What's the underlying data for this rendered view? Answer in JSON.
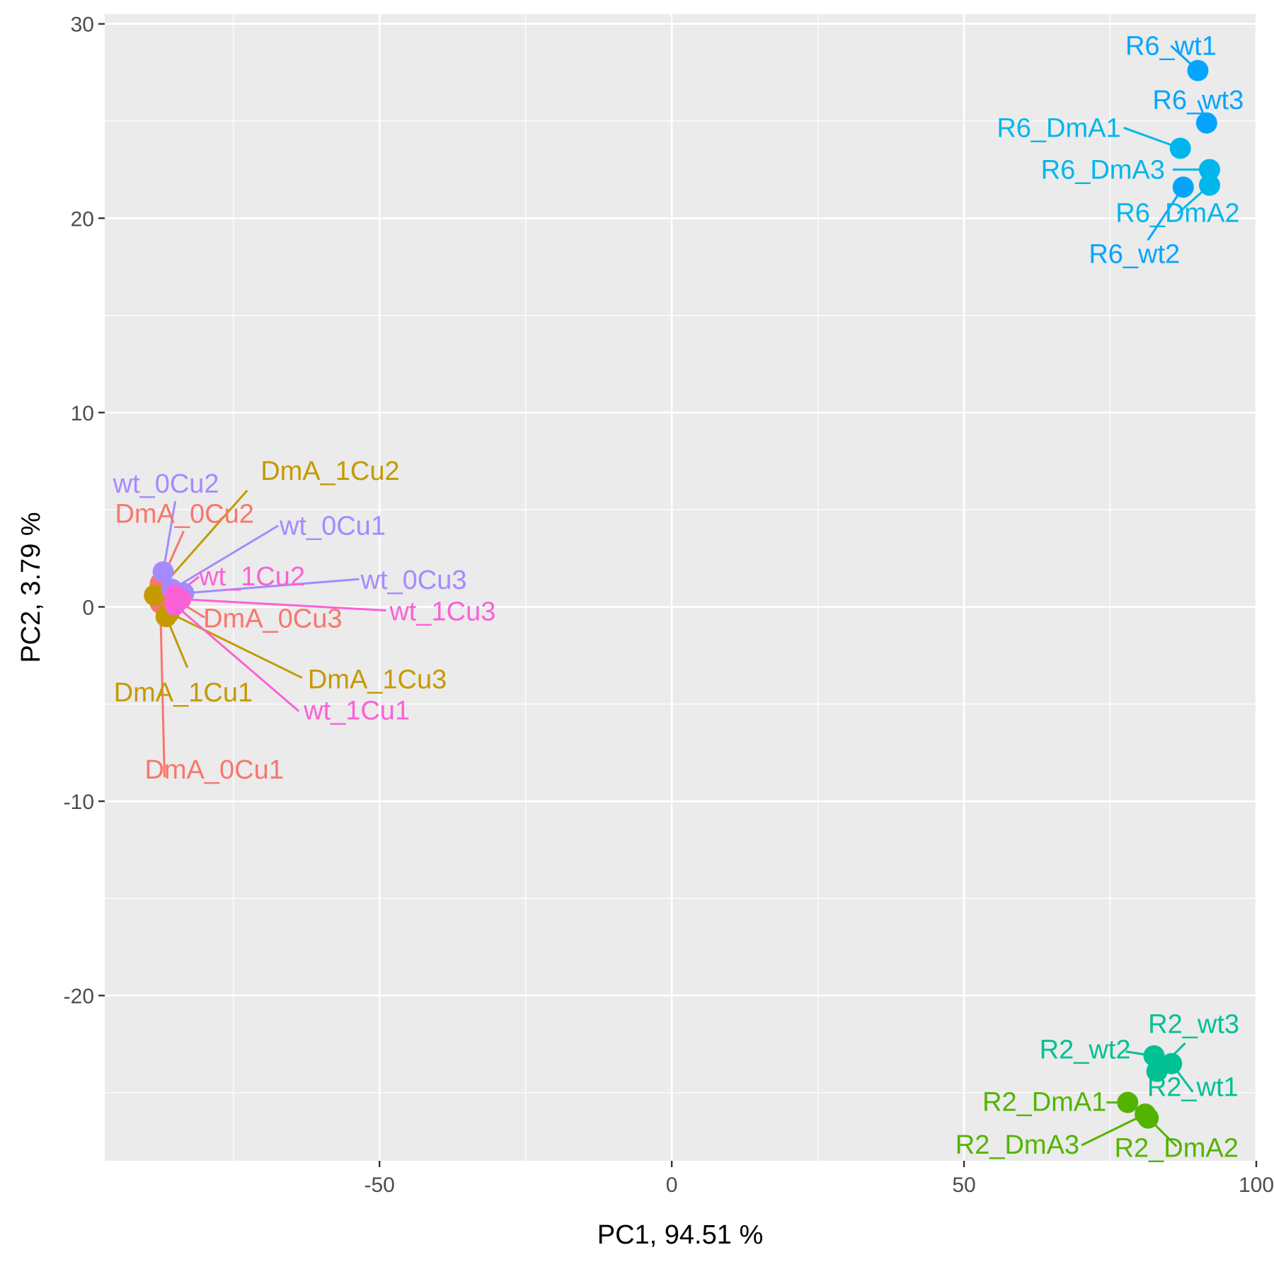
{
  "chart_data": {
    "type": "scatter",
    "title": "",
    "xlabel": "PC1,  94.51 %",
    "ylabel": "PC2,  3.79 %",
    "xlim": [
      -97,
      100
    ],
    "ylim": [
      -28.5,
      30.5
    ],
    "x_ticks": [
      -50,
      0,
      50,
      100
    ],
    "y_ticks": [
      -20,
      -10,
      0,
      10,
      20,
      30
    ],
    "x_tick_labels": [
      "-50",
      "0",
      "50",
      "100"
    ],
    "y_tick_labels": [
      "-20",
      "-10",
      "0",
      "10",
      "20",
      "30"
    ],
    "grid": true,
    "legend": "none",
    "series": [
      {
        "color": "#F8766D",
        "points": [
          {
            "label": "DmA_0Cu1",
            "x": -87.5,
            "y": 0.2
          },
          {
            "label": "DmA_0Cu2",
            "x": -87.5,
            "y": 1.2
          },
          {
            "label": "DmA_0Cu3",
            "x": -85.0,
            "y": 0.4
          }
        ]
      },
      {
        "color": "#C49A00",
        "points": [
          {
            "label": "DmA_1Cu1",
            "x": -86.5,
            "y": -0.5
          },
          {
            "label": "DmA_1Cu2",
            "x": -88.5,
            "y": 0.6
          },
          {
            "label": "DmA_1Cu3",
            "x": -86.0,
            "y": -0.3
          }
        ]
      },
      {
        "color": "#53B400",
        "points": [
          {
            "label": "R2_DmA1",
            "x": 78.0,
            "y": -25.5
          },
          {
            "label": "R2_DmA2",
            "x": 81.5,
            "y": -26.3
          },
          {
            "label": "R2_DmA3",
            "x": 81.0,
            "y": -26.1
          }
        ]
      },
      {
        "color": "#00C094",
        "points": [
          {
            "label": "R2_wt1",
            "x": 85.5,
            "y": -23.5
          },
          {
            "label": "R2_wt2",
            "x": 82.5,
            "y": -23.1
          },
          {
            "label": "R2_wt3",
            "x": 83.0,
            "y": -23.9
          }
        ]
      },
      {
        "color": "#00B6EB",
        "points": [
          {
            "label": "R6_DmA1",
            "x": 87.0,
            "y": 23.6
          },
          {
            "label": "R6_DmA2",
            "x": 92.0,
            "y": 21.7
          },
          {
            "label": "R6_DmA3",
            "x": 92.0,
            "y": 22.5
          }
        ]
      },
      {
        "color": "#06A4FF",
        "points": [
          {
            "label": "R6_wt1",
            "x": 90.0,
            "y": 27.6
          },
          {
            "label": "R6_wt2",
            "x": 87.5,
            "y": 21.6
          },
          {
            "label": "R6_wt3",
            "x": 91.5,
            "y": 24.9
          }
        ]
      },
      {
        "color": "#A58AFF",
        "points": [
          {
            "label": "wt_0Cu1",
            "x": -85.5,
            "y": 0.9
          },
          {
            "label": "wt_0Cu2",
            "x": -87.0,
            "y": 1.8
          },
          {
            "label": "wt_0Cu3",
            "x": -83.5,
            "y": 0.7
          }
        ]
      },
      {
        "color": "#FB61D7",
        "points": [
          {
            "label": "wt_1Cu1",
            "x": -85.0,
            "y": 0.1
          },
          {
            "label": "wt_1Cu2",
            "x": -85.0,
            "y": 0.6
          },
          {
            "label": "wt_1Cu3",
            "x": -84.0,
            "y": 0.4
          }
        ]
      }
    ]
  }
}
